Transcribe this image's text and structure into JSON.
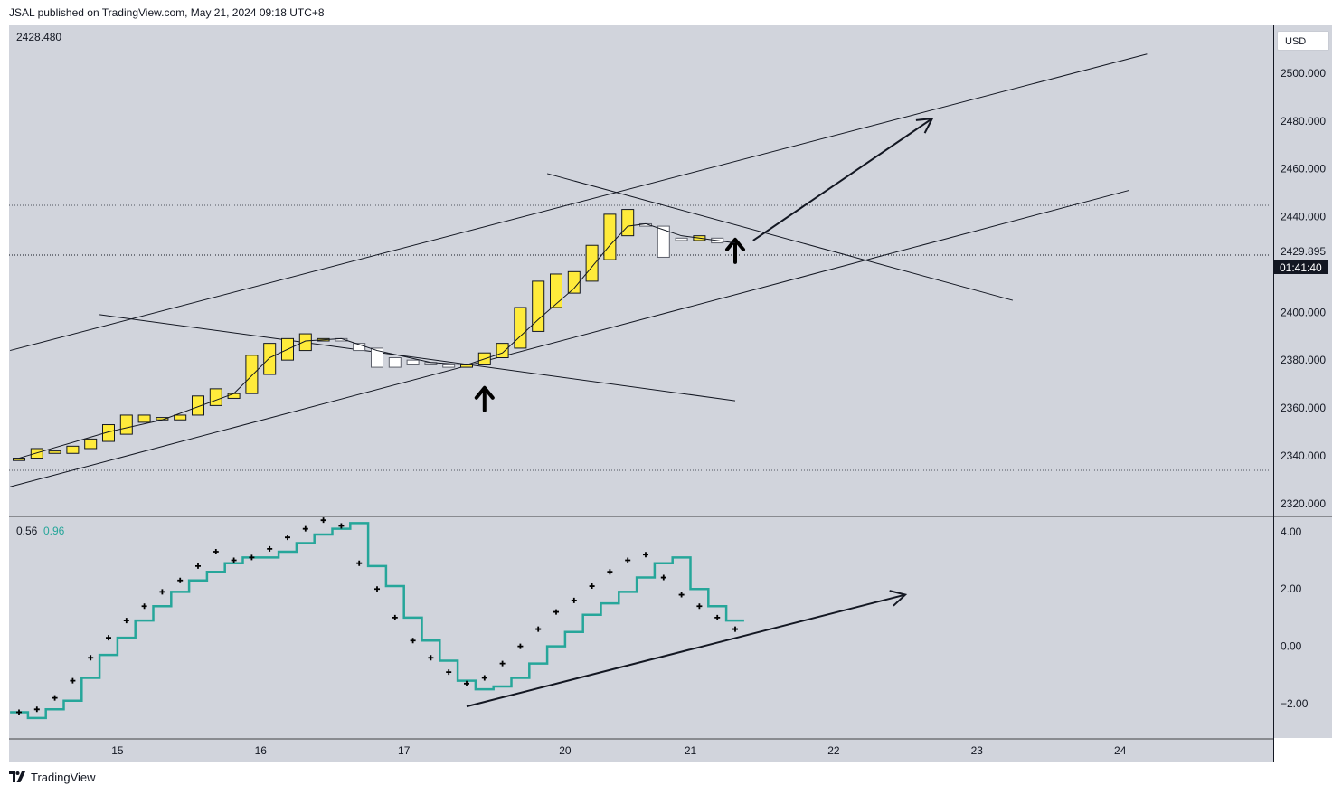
{
  "header": {
    "published_text": "JSAL published on TradingView.com, May 21, 2024 09:18 UTC+8"
  },
  "footer": {
    "brand": "TradingView"
  },
  "toolbar": {
    "currency": "USD"
  },
  "chart_data": {
    "type": "candlestick",
    "main_pane": {
      "ohlc_readout": "2428.480",
      "price_axis_ticks": [
        "2500.000",
        "2480.000",
        "2460.000",
        "2440.000",
        "2400.000",
        "2380.000",
        "2360.000",
        "2340.000",
        "2320.000"
      ],
      "ylim": [
        2315,
        2520
      ],
      "current_price_label": "2429.895",
      "countdown_label": "01:41:40",
      "up_color": "#ffeb3b",
      "down_color": "#ffffff",
      "candles": [
        {
          "x": 0,
          "o": 2338,
          "c": 2339
        },
        {
          "x": 1,
          "o": 2339,
          "c": 2343
        },
        {
          "x": 2,
          "o": 2341,
          "c": 2342
        },
        {
          "x": 3,
          "o": 2341,
          "c": 2344
        },
        {
          "x": 4,
          "o": 2343,
          "c": 2347
        },
        {
          "x": 5,
          "o": 2346,
          "c": 2353
        },
        {
          "x": 6,
          "o": 2349,
          "c": 2357
        },
        {
          "x": 7,
          "o": 2354,
          "c": 2357
        },
        {
          "x": 8,
          "o": 2355,
          "c": 2356
        },
        {
          "x": 9,
          "o": 2355,
          "c": 2357
        },
        {
          "x": 10,
          "o": 2357,
          "c": 2365
        },
        {
          "x": 11,
          "o": 2361,
          "c": 2368
        },
        {
          "x": 12,
          "o": 2364,
          "c": 2366
        },
        {
          "x": 13,
          "o": 2366,
          "c": 2382
        },
        {
          "x": 14,
          "o": 2374,
          "c": 2387
        },
        {
          "x": 15,
          "o": 2380,
          "c": 2389
        },
        {
          "x": 16,
          "o": 2384,
          "c": 2391
        },
        {
          "x": 17,
          "o": 2388,
          "c": 2389
        },
        {
          "x": 18,
          "o": 2389,
          "c": 2388
        },
        {
          "x": 19,
          "o": 2387,
          "c": 2384
        },
        {
          "x": 20,
          "o": 2385,
          "c": 2377
        },
        {
          "x": 21,
          "o": 2381,
          "c": 2377
        },
        {
          "x": 22,
          "o": 2380,
          "c": 2378
        },
        {
          "x": 23,
          "o": 2379,
          "c": 2378
        },
        {
          "x": 24,
          "o": 2378,
          "c": 2377
        },
        {
          "x": 25,
          "o": 2377,
          "c": 2378
        },
        {
          "x": 26,
          "o": 2378,
          "c": 2383
        },
        {
          "x": 27,
          "o": 2381,
          "c": 2387
        },
        {
          "x": 28,
          "o": 2385,
          "c": 2402
        },
        {
          "x": 29,
          "o": 2392,
          "c": 2413
        },
        {
          "x": 30,
          "o": 2402,
          "c": 2416
        },
        {
          "x": 31,
          "o": 2408,
          "c": 2417
        },
        {
          "x": 32,
          "o": 2413,
          "c": 2428
        },
        {
          "x": 33,
          "o": 2422,
          "c": 2441
        },
        {
          "x": 34,
          "o": 2432,
          "c": 2443
        },
        {
          "x": 35,
          "o": 2437,
          "c": 2436
        },
        {
          "x": 36,
          "o": 2436,
          "c": 2423
        },
        {
          "x": 37,
          "o": 2431,
          "c": 2430
        },
        {
          "x": 38,
          "o": 2430,
          "c": 2432
        },
        {
          "x": 39,
          "o": 2431,
          "c": 2429
        }
      ],
      "moving_average": [
        [
          0,
          2339
        ],
        [
          5,
          2350
        ],
        [
          8,
          2355
        ],
        [
          12,
          2366
        ],
        [
          14,
          2381
        ],
        [
          16,
          2388
        ],
        [
          18,
          2389
        ],
        [
          20,
          2384
        ],
        [
          23,
          2379
        ],
        [
          25,
          2378
        ],
        [
          27,
          2383
        ],
        [
          29,
          2397
        ],
        [
          31,
          2410
        ],
        [
          33,
          2428
        ],
        [
          34,
          2436
        ],
        [
          35,
          2437
        ],
        [
          37,
          2432
        ],
        [
          38,
          2431
        ],
        [
          39,
          2430
        ],
        [
          40,
          2429
        ]
      ]
    },
    "indicator_pane": {
      "readout_values": [
        "0.56",
        "0.96"
      ],
      "axis_ticks": [
        "4.00",
        "2.00",
        "0.00",
        "−2.00"
      ],
      "ylim": [
        -3.2,
        4.5
      ],
      "line_color": "#26a69a",
      "stepped_line": [
        -2.3,
        -2.5,
        -2.2,
        -1.9,
        -1.1,
        -0.3,
        0.3,
        0.9,
        1.4,
        1.9,
        2.3,
        2.6,
        2.9,
        3.1,
        3.1,
        3.3,
        3.6,
        3.9,
        4.1,
        4.3,
        2.8,
        2.1,
        1.0,
        0.2,
        -0.5,
        -1.2,
        -1.5,
        -1.4,
        -1.1,
        -0.6,
        0.0,
        0.5,
        1.1,
        1.5,
        1.9,
        2.4,
        2.9,
        3.1,
        2.0,
        1.4,
        0.9
      ],
      "dots": [
        -2.3,
        -2.2,
        -1.8,
        -1.2,
        -0.4,
        0.3,
        0.9,
        1.4,
        1.9,
        2.3,
        2.8,
        3.3,
        3.0,
        3.1,
        3.4,
        3.8,
        4.1,
        4.4,
        4.2,
        2.9,
        2.0,
        1.0,
        0.2,
        -0.4,
        -0.9,
        -1.3,
        -1.1,
        -0.6,
        0.0,
        0.6,
        1.2,
        1.6,
        2.1,
        2.6,
        3.0,
        3.2,
        2.4,
        1.8,
        1.4,
        1.0,
        0.6
      ]
    },
    "time_axis": {
      "labels": [
        {
          "label": "15",
          "bar": 5.5
        },
        {
          "label": "16",
          "bar": 13.5
        },
        {
          "label": "17",
          "bar": 21.5
        },
        {
          "label": "20",
          "bar": 30.5
        },
        {
          "label": "21",
          "bar": 37.5
        },
        {
          "label": "22",
          "bar": 45.5
        },
        {
          "label": "23",
          "bar": 53.5
        },
        {
          "label": "24",
          "bar": 61.5
        }
      ]
    },
    "drawings": {
      "main_pane": {
        "upper_channel_line": [
          [
            -0.5,
            2384
          ],
          [
            63,
            2508
          ]
        ],
        "lower_channel_line": [
          [
            -0.5,
            2327
          ],
          [
            62,
            2451
          ]
        ],
        "descending_line_1": [
          [
            4.5,
            2399
          ],
          [
            40,
            2363
          ]
        ],
        "descending_line_2": [
          [
            29.5,
            2458
          ],
          [
            55.5,
            2405
          ]
        ],
        "projection_arrow": [
          [
            41,
            2430
          ],
          [
            51,
            2481
          ]
        ],
        "up_arrow_markers": [
          [
            26,
            2365
          ],
          [
            40,
            2427
          ]
        ]
      },
      "indicator_pane": {
        "divergence_arrow": [
          [
            25,
            -2.1
          ],
          [
            49.5,
            1.8
          ]
        ]
      }
    }
  }
}
